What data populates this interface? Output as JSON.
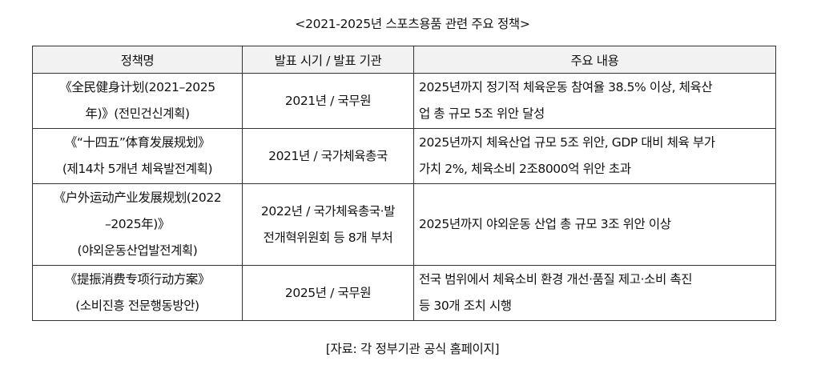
{
  "title": "<2021-2025년 스포츠용품 관련 주요 정책>",
  "table": {
    "headers": [
      "정책명",
      "발표 시기 / 발표 기관",
      "주요 내용"
    ],
    "rows": [
      {
        "name_lines": [
          "《全民健身计划(2021–2025",
          "年)》(전민건신계획)"
        ],
        "issuer_lines": [
          "2021년 / 국무원"
        ],
        "content_lines": [
          "2025년까지 정기적 체육운동 참여율 38.5% 이상, 체육산",
          "업 총 규모 5조 위안 달성"
        ]
      },
      {
        "name_lines": [
          "《“十四五”体育发展规划》",
          "(제14차 5개년 체육발전계획)"
        ],
        "issuer_lines": [
          "2021년 / 국가체육총국"
        ],
        "content_lines": [
          "2025년까지 체육산업 규모 5조 위안, GDP 대비 체육 부가",
          "가치 2%, 체육소비 2조8000억 위안 초과"
        ]
      },
      {
        "name_lines": [
          "《户外运动产业发展规划(2022",
          "–2025年)》",
          "(야외운동산업발전계획)"
        ],
        "issuer_lines": [
          "2022년 / 국가체육총국·발",
          "전개혁위원회 등 8개 부처"
        ],
        "content_lines": [
          "2025년까지 야외운동 산업 총 규모 3조 위안 이상"
        ]
      },
      {
        "name_lines": [
          "《提振消费专项行动方案》",
          "(소비진흥 전문행동방안)"
        ],
        "issuer_lines": [
          "2025년 / 국무원"
        ],
        "content_lines": [
          "전국 범위에서 체육소비 환경 개선·품질 제고·소비 촉진",
          "등 30개 조치 시행"
        ]
      }
    ]
  },
  "source": "[자료: 각 정부기관 공식 홈페이지]"
}
